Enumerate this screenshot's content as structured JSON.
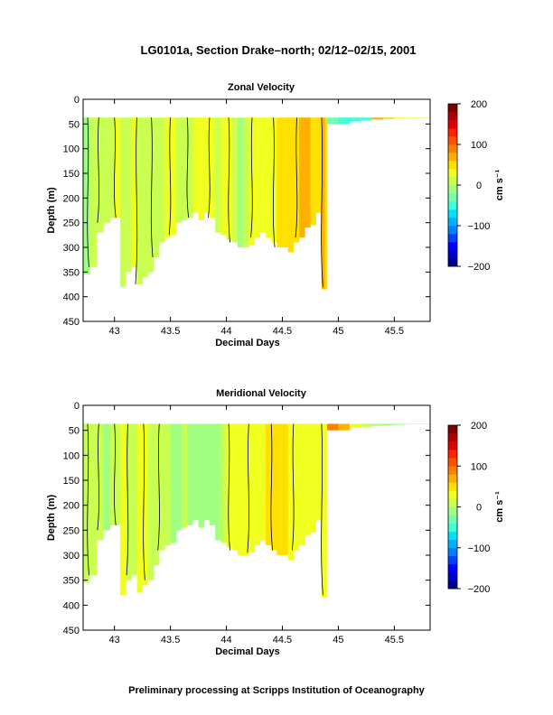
{
  "page": {
    "title": "LG0101a, Section Drake–north; 02/12–02/15, 2001",
    "footer": "Preliminary processing at Scripps Institution of Oceanography"
  },
  "chart_data": [
    {
      "type": "heatmap",
      "title": "Zonal Velocity",
      "xlabel": "Decimal Days",
      "ylabel": "Depth (m)",
      "xlim": [
        42.72,
        45.82
      ],
      "ylim": [
        450,
        0
      ],
      "xticks": [
        43,
        43.5,
        44,
        44.5,
        45,
        45.5
      ],
      "xtick_labels": [
        "43",
        "43.5",
        "44",
        "44.5",
        "45",
        "45.5"
      ],
      "yticks": [
        0,
        50,
        100,
        150,
        200,
        250,
        300,
        350,
        400,
        450
      ],
      "ytick_labels": [
        "0",
        "50",
        "100",
        "150",
        "200",
        "250",
        "300",
        "350",
        "400",
        "450"
      ],
      "data_top_depth": 37,
      "colorbar": {
        "min": -200,
        "max": 200,
        "ticks": [
          "200",
          "100",
          "0",
          "−100",
          "−200"
        ],
        "label": "cm s⁻¹"
      },
      "columns": {
        "x": [
          42.72,
          42.78,
          42.84,
          42.9,
          42.96,
          43.0,
          43.05,
          43.1,
          43.15,
          43.2,
          43.25,
          43.3,
          43.35,
          43.4,
          43.45,
          43.5,
          43.55,
          43.6,
          43.65,
          43.7,
          43.75,
          43.8,
          43.85,
          43.9,
          43.95,
          44.0,
          44.05,
          44.1,
          44.15,
          44.2,
          44.25,
          44.3,
          44.35,
          44.4,
          44.45,
          44.5,
          44.55,
          44.6,
          44.65,
          44.7,
          44.75,
          44.8,
          44.85,
          44.88,
          44.9,
          45.0,
          45.1,
          45.2,
          45.3,
          45.4,
          45.5,
          45.6,
          45.7,
          45.82
        ],
        "bottom_depth": [
          355,
          340,
          270,
          250,
          240,
          240,
          380,
          350,
          340,
          375,
          360,
          350,
          320,
          290,
          280,
          275,
          250,
          245,
          240,
          230,
          245,
          230,
          240,
          270,
          275,
          285,
          290,
          300,
          300,
          295,
          280,
          270,
          280,
          290,
          300,
          300,
          310,
          290,
          280,
          260,
          255,
          230,
          385,
          385,
          50,
          50,
          45,
          43,
          41,
          40,
          39,
          38,
          38,
          38
        ],
        "velocity": [
          -5,
          8,
          5,
          10,
          15,
          25,
          5,
          10,
          20,
          15,
          10,
          5,
          10,
          15,
          20,
          25,
          10,
          5,
          15,
          20,
          25,
          30,
          20,
          15,
          30,
          20,
          10,
          -5,
          15,
          25,
          35,
          30,
          25,
          20,
          40,
          45,
          50,
          55,
          60,
          70,
          55,
          45,
          60,
          40,
          -40,
          -50,
          -60,
          -50,
          60,
          50,
          30,
          20,
          5,
          0
        ]
      },
      "contour_days": [
        42.76,
        42.86,
        43.0,
        43.2,
        43.33,
        43.5,
        43.65,
        43.85,
        44.02,
        44.23,
        44.42,
        44.63,
        44.85
      ]
    },
    {
      "type": "heatmap",
      "title": "Meridional Velocity",
      "xlabel": "Decimal Days",
      "ylabel": "Depth (m)",
      "xlim": [
        42.72,
        45.82
      ],
      "ylim": [
        450,
        0
      ],
      "xticks": [
        43,
        43.5,
        44,
        44.5,
        45,
        45.5
      ],
      "xtick_labels": [
        "43",
        "43.5",
        "44",
        "44.5",
        "45",
        "45.5"
      ],
      "yticks": [
        0,
        50,
        100,
        150,
        200,
        250,
        300,
        350,
        400,
        450
      ],
      "ytick_labels": [
        "0",
        "50",
        "100",
        "150",
        "200",
        "250",
        "300",
        "350",
        "400",
        "450"
      ],
      "data_top_depth": 37,
      "colorbar": {
        "min": -200,
        "max": 200,
        "ticks": [
          "200",
          "100",
          "0",
          "−100",
          "−200"
        ],
        "label": "cm s⁻¹"
      },
      "columns": {
        "x": [
          42.72,
          42.78,
          42.84,
          42.9,
          42.96,
          43.0,
          43.05,
          43.1,
          43.15,
          43.2,
          43.25,
          43.3,
          43.35,
          43.4,
          43.45,
          43.5,
          43.55,
          43.6,
          43.65,
          43.7,
          43.75,
          43.8,
          43.85,
          43.9,
          43.95,
          44.0,
          44.05,
          44.1,
          44.15,
          44.2,
          44.25,
          44.3,
          44.35,
          44.4,
          44.45,
          44.5,
          44.55,
          44.6,
          44.65,
          44.7,
          44.75,
          44.8,
          44.85,
          44.88,
          44.9,
          45.0,
          45.1,
          45.2,
          45.3,
          45.4,
          45.5,
          45.6,
          45.7,
          45.82
        ],
        "bottom_depth": [
          355,
          340,
          270,
          250,
          240,
          240,
          380,
          350,
          340,
          375,
          360,
          350,
          320,
          290,
          280,
          275,
          250,
          245,
          240,
          230,
          245,
          230,
          240,
          270,
          275,
          285,
          290,
          300,
          300,
          295,
          280,
          270,
          280,
          290,
          300,
          300,
          310,
          290,
          280,
          260,
          255,
          230,
          385,
          385,
          50,
          50,
          45,
          43,
          41,
          40,
          39,
          38,
          38,
          38
        ],
        "velocity": [
          5,
          10,
          15,
          -20,
          10,
          15,
          20,
          10,
          15,
          20,
          20,
          15,
          10,
          5,
          0,
          -5,
          -10,
          0,
          -5,
          -15,
          -10,
          -5,
          -10,
          -15,
          10,
          20,
          25,
          30,
          25,
          20,
          30,
          35,
          40,
          40,
          45,
          40,
          35,
          30,
          25,
          30,
          35,
          30,
          25,
          20,
          90,
          60,
          30,
          10,
          -10,
          -10,
          -20,
          0,
          0,
          0
        ]
      },
      "contour_days": [
        42.76,
        42.86,
        43.0,
        43.12,
        43.26,
        43.4,
        44.02,
        44.2,
        44.4,
        44.6,
        44.85
      ]
    }
  ]
}
